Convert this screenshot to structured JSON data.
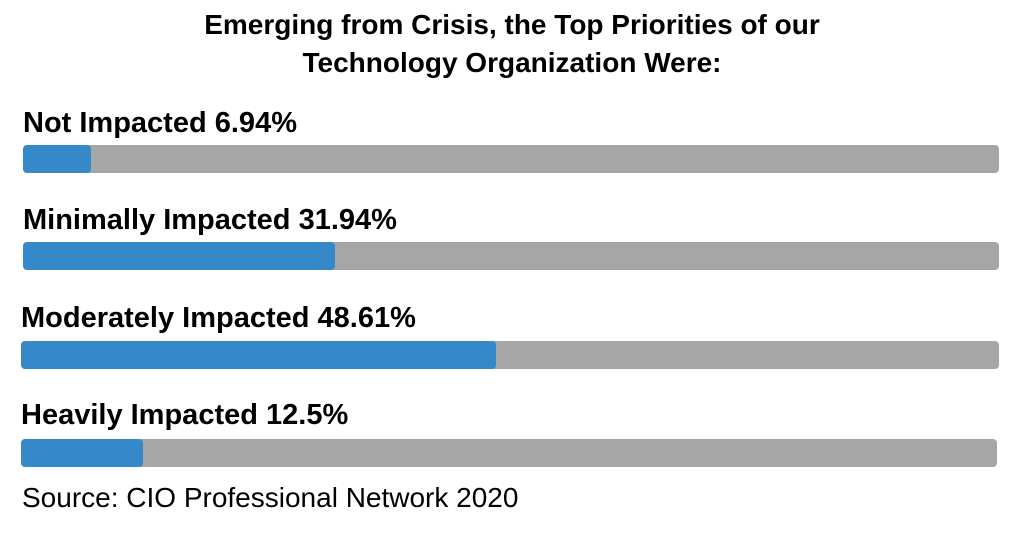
{
  "chart_data": {
    "type": "bar",
    "orientation": "horizontal",
    "title_lines": [
      "Emerging from Crisis, the Top Priorities of our",
      "Technology Organization Were:"
    ],
    "categories": [
      "Not Impacted",
      "Minimally Impacted",
      "Moderately Impacted",
      "Heavily Impacted"
    ],
    "values": [
      6.94,
      31.94,
      48.61,
      12.5
    ],
    "value_labels": [
      "6.94%",
      "31.94%",
      "48.61%",
      "12.5%"
    ],
    "xlim": [
      0,
      100
    ],
    "source": "Source: CIO Professional Network 2020",
    "colors": {
      "fill": "#3689c9",
      "track": "#a6a6a6"
    },
    "grid": false,
    "legend": "none"
  }
}
